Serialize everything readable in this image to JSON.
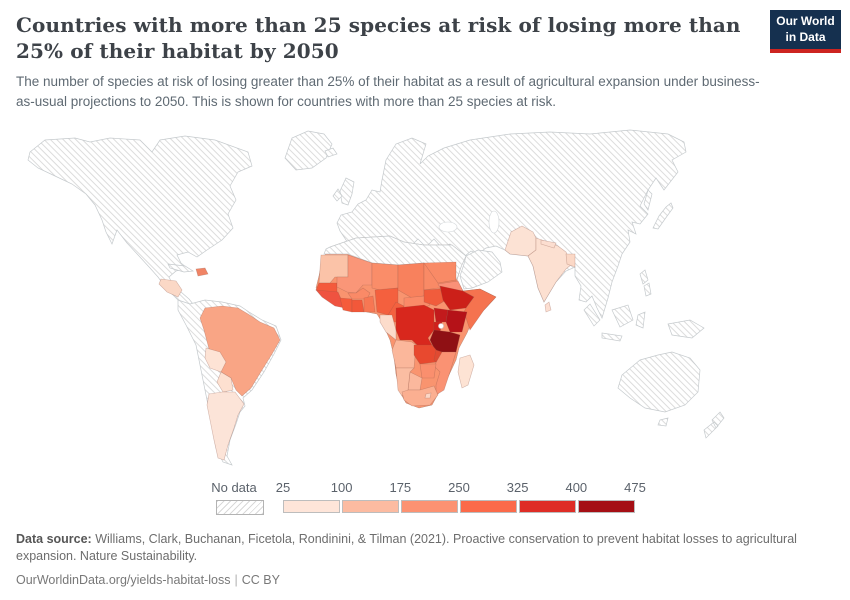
{
  "header": {
    "title": "Countries with more than 25 species at risk of losing more than 25% of their habitat by 2050",
    "subtitle": "The number of species at risk of losing greater than 25% of their habitat as a result of agricultural expansion under business-as-usual projections to 2050. This is shown for countries with more than 25 species at risk.",
    "logo": {
      "line1": "Our World",
      "line2": "in Data",
      "bg": "#15304F",
      "accent": "#cd2420"
    }
  },
  "legend": {
    "no_data_label": "No data",
    "ticks": [
      "25",
      "100",
      "175",
      "250",
      "325",
      "400",
      "475"
    ],
    "colors": [
      "#fee5d9",
      "#fcbba1",
      "#fc9272",
      "#fb6a4a",
      "#de2d26",
      "#a50f15"
    ]
  },
  "footer": {
    "source_label": "Data source:",
    "source_text": " Williams, Clark, Buchanan, Ficetola, Rondinini, & Tilman (2021). Proactive conservation to prevent habitat losses to agricultural expansion. Nature Sustainability.",
    "link_text": "OurWorldinData.org/yields-habitat-loss",
    "separator": "|",
    "license": "CC BY"
  },
  "chart_data": {
    "type": "choropleth-map",
    "title": "Countries with more than 25 species at risk of losing more than 25% of their habitat by 2050",
    "unit": "number of species at risk",
    "no_data_style": "diagonal-hatch",
    "bins": [
      {
        "range": "25-100",
        "color": "#fee5d9"
      },
      {
        "range": "100-175",
        "color": "#fcbba1"
      },
      {
        "range": "175-250",
        "color": "#fc9272"
      },
      {
        "range": "250-325",
        "color": "#fb6a4a"
      },
      {
        "range": "325-400",
        "color": "#de2d26"
      },
      {
        "range": "400-475",
        "color": "#a50f15"
      }
    ],
    "no_data_regions": [
      "North America",
      "Greenland",
      "Europe",
      "Russia & Central Asia",
      "China & East Asia",
      "Japan",
      "Southeast Asia",
      "Indonesia & New Guinea",
      "Middle East",
      "North Africa",
      "Australia",
      "New Zealand",
      "Chile, Peru, Colombia, Venezuela & Guyanas",
      "Cuba"
    ],
    "countries": [
      {
        "slug": "honduras-nicaragua",
        "name": "Honduras & Nicaragua",
        "value": 55,
        "color": "#fbd8c6"
      },
      {
        "slug": "hispaniola",
        "name": "Haiti & Dominican Republic",
        "value": 220,
        "color": "#f08465"
      },
      {
        "slug": "brazil",
        "name": "Brazil",
        "value": 170,
        "color": "#f9a585"
      },
      {
        "slug": "bolivia",
        "name": "Bolivia",
        "value": 45,
        "color": "#fde3d5"
      },
      {
        "slug": "paraguay",
        "name": "Paraguay",
        "value": 50,
        "color": "#fde0d0"
      },
      {
        "slug": "argentina",
        "name": "Argentina",
        "value": 40,
        "color": "#fce4d8"
      },
      {
        "slug": "mauritania",
        "name": "Mauritania",
        "value": 120,
        "color": "#fbc3a8"
      },
      {
        "slug": "senegal",
        "name": "Senegal & Gambia",
        "value": 290,
        "color": "#f45a3c"
      },
      {
        "slug": "guinea-group",
        "name": "Guinea, Sierra Leone & Liberia",
        "value": 300,
        "color": "#ef5340"
      },
      {
        "slug": "mali",
        "name": "Mali",
        "value": 200,
        "color": "#fa9678"
      },
      {
        "slug": "burkina-faso",
        "name": "Burkina Faso",
        "value": 210,
        "color": "#fa8a67"
      },
      {
        "slug": "cote-divoire",
        "name": "Cote d'Ivoire",
        "value": 290,
        "color": "#f55b3b"
      },
      {
        "slug": "ghana",
        "name": "Ghana",
        "value": 290,
        "color": "#f2583a"
      },
      {
        "slug": "togo-benin",
        "name": "Togo & Benin",
        "value": 250,
        "color": "#f77753"
      },
      {
        "slug": "niger",
        "name": "Niger",
        "value": 200,
        "color": "#fa8d69"
      },
      {
        "slug": "nigeria",
        "name": "Nigeria",
        "value": 290,
        "color": "#f4603e"
      },
      {
        "slug": "chad",
        "name": "Chad",
        "value": 210,
        "color": "#f8815d"
      },
      {
        "slug": "sudan",
        "name": "Sudan",
        "value": 200,
        "color": "#f98a66"
      },
      {
        "slug": "eritrea",
        "name": "Eritrea & Djibouti",
        "value": 190,
        "color": "#fa9178"
      },
      {
        "slug": "cameroon",
        "name": "Cameroon",
        "value": 290,
        "color": "#f4613f"
      },
      {
        "slug": "car",
        "name": "Central African Republic",
        "value": 210,
        "color": "#fa8a68"
      },
      {
        "slug": "south-sudan",
        "name": "South Sudan",
        "value": 280,
        "color": "#f15c3c"
      },
      {
        "slug": "ethiopia",
        "name": "Ethiopia",
        "value": 370,
        "color": "#cc2019"
      },
      {
        "slug": "somalia",
        "name": "Somalia",
        "value": 260,
        "color": "#f5734f"
      },
      {
        "slug": "gabon-congo",
        "name": "Gabon & Congo",
        "value": 60,
        "color": "#fcdccb"
      },
      {
        "slug": "drc",
        "name": "Democratic Republic of Congo",
        "value": 360,
        "color": "#d8271d"
      },
      {
        "slug": "uganda",
        "name": "Uganda",
        "value": 390,
        "color": "#c21a1c"
      },
      {
        "slug": "kenya",
        "name": "Kenya",
        "value": 430,
        "color": "#b51218"
      },
      {
        "slug": "rwanda-burundi",
        "name": "Rwanda & Burundi",
        "value": 370,
        "color": "#d0211c"
      },
      {
        "slug": "tanzania",
        "name": "Tanzania",
        "value": 465,
        "color": "#8f1014"
      },
      {
        "slug": "angola",
        "name": "Angola",
        "value": 150,
        "color": "#fbb79b"
      },
      {
        "slug": "zambia",
        "name": "Zambia",
        "value": 310,
        "color": "#e8492f"
      },
      {
        "slug": "malawi",
        "name": "Malawi",
        "value": 320,
        "color": "#e04a31"
      },
      {
        "slug": "mozambique",
        "name": "Mozambique",
        "value": 200,
        "color": "#fa9273"
      },
      {
        "slug": "zimbabwe",
        "name": "Zimbabwe",
        "value": 200,
        "color": "#fa8f6e"
      },
      {
        "slug": "botswana",
        "name": "Botswana",
        "value": 130,
        "color": "#fbb89d"
      },
      {
        "slug": "namibia",
        "name": "Namibia",
        "value": 130,
        "color": "#fbbda2"
      },
      {
        "slug": "south-africa",
        "name": "South Africa",
        "value": 150,
        "color": "#fbaf91"
      },
      {
        "slug": "lesotho",
        "name": "Lesotho",
        "value": 60,
        "color": "#fcd7c6"
      },
      {
        "slug": "madagascar",
        "name": "Madagascar",
        "value": 50,
        "color": "#fde3d4"
      },
      {
        "slug": "pakistan",
        "name": "Pakistan",
        "value": 40,
        "color": "#fce2d4"
      },
      {
        "slug": "india",
        "name": "India",
        "value": 45,
        "color": "#fce0d1"
      },
      {
        "slug": "nepal",
        "name": "Nepal",
        "value": 50,
        "color": "#fcded0"
      },
      {
        "slug": "bangladesh",
        "name": "Bangladesh",
        "value": 70,
        "color": "#fbd8c6"
      },
      {
        "slug": "sri-lanka",
        "name": "Sri Lanka",
        "value": 45,
        "color": "#fcdfd2"
      }
    ]
  }
}
